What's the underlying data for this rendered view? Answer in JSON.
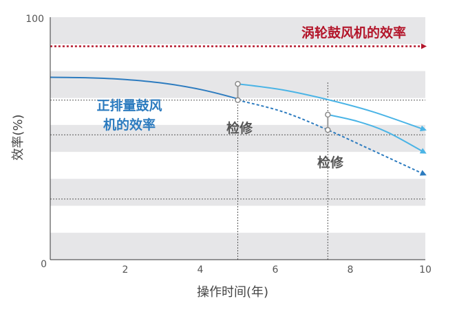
{
  "chart_data": {
    "type": "line",
    "title": "",
    "xlabel": "操作时间(年)",
    "ylabel": "效率(%)",
    "xlim": [
      0,
      10
    ],
    "ylim": [
      0,
      100
    ],
    "x_ticks": [
      "2",
      "4",
      "6",
      "8",
      "10"
    ],
    "y_tick_labels": {
      "top": "100",
      "bottom": "0"
    },
    "background": "alternating grey bands",
    "series": [
      {
        "name": "涡轮鼓风机的效率",
        "style": "dotted",
        "color": "#b3152a",
        "points": [
          [
            0,
            88
          ],
          [
            10,
            88
          ]
        ]
      },
      {
        "name": "正排量鼓风机的效率",
        "style": "solid",
        "color": "#2c7bbf",
        "points": [
          [
            0,
            75.2
          ],
          [
            1,
            75.0
          ],
          [
            2,
            74.3
          ],
          [
            3,
            72.8
          ],
          [
            4,
            70.2
          ],
          [
            5,
            66.3
          ],
          [
            5.0,
            65.8
          ]
        ]
      },
      {
        "name": "",
        "style": "dotted",
        "color": "#2c7bbf",
        "points": [
          [
            5.0,
            65.8
          ],
          [
            6.2,
            61.0
          ],
          [
            7.4,
            53.5
          ],
          [
            8.6,
            45.0
          ],
          [
            10,
            35.0
          ]
        ]
      },
      {
        "name": "",
        "style": "solid",
        "color": "#4ab4e6",
        "points": [
          [
            5.0,
            72.5
          ],
          [
            6.2,
            70.0
          ],
          [
            7.4,
            66.0
          ],
          [
            8.6,
            61.0
          ],
          [
            10,
            53.5
          ]
        ]
      },
      {
        "name": "",
        "style": "solid",
        "color": "#4ab4e6",
        "points": [
          [
            7.4,
            59.8
          ],
          [
            8.2,
            57.0
          ],
          [
            9.0,
            52.5
          ],
          [
            10,
            44.0
          ]
        ]
      }
    ],
    "reference_lines": {
      "horizontal_y": [
        65.8,
        51.5,
        25.0
      ],
      "vertical_x": [
        5.0,
        7.4
      ]
    },
    "maintenance_markers": [
      {
        "x": 5.0,
        "from": 65.8,
        "to": 72.5
      },
      {
        "x": 7.4,
        "from": 53.5,
        "to": 59.8
      }
    ],
    "annotations": [
      {
        "text": "涡轮鼓风机的效率",
        "color": "#b3152a"
      },
      {
        "text": "正排量鼓风",
        "color": "#2c7bbf"
      },
      {
        "text": "机的效率",
        "color": "#2c7bbf"
      },
      {
        "text": "检修",
        "color": "#555555"
      },
      {
        "text": "检修",
        "color": "#555555"
      }
    ],
    "grid": false,
    "legend": "none"
  }
}
